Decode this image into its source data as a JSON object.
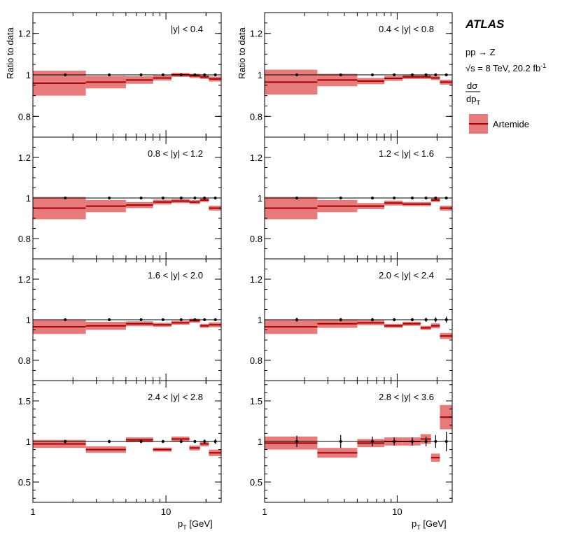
{
  "chart_data": {
    "type": "ratio",
    "experiment": "ATLAS",
    "process": "pp → Z",
    "energy_label": "√s = 8 TeV, 20.2 fb",
    "lumi_exponent": "-1",
    "observable_num": "dσ",
    "observable_den_base": "dp",
    "observable_den_sub": "T",
    "ylabel": "Ratio to data",
    "xlabel_base": "p",
    "xlabel_sub": "T",
    "xlabel_unit": "[GeV]",
    "legend": [
      {
        "name": "Artemide",
        "line_color": "#a00000",
        "band_color": "#e77b7b"
      }
    ],
    "x_range": [
      1,
      26
    ],
    "x_tick_labels": [
      {
        "value": 1,
        "label": "1"
      },
      {
        "value": 10,
        "label": "10"
      }
    ],
    "bins": [
      1,
      2.5,
      5,
      8,
      11,
      15,
      18,
      21,
      26
    ],
    "data_x": [
      1.75,
      3.75,
      6.5,
      9.5,
      13,
      16.5,
      19.5,
      23.5
    ],
    "panels": [
      {
        "label": "|y| < 0.4",
        "ylim": [
          0.7,
          1.3
        ],
        "yticks": [
          0.8,
          1,
          1.2
        ],
        "ytick_labels": [
          "0.8",
          "1",
          "1.2"
        ],
        "pred": [
          0.96,
          0.965,
          0.975,
          0.985,
          1.0,
          0.995,
          0.99,
          0.98
        ],
        "unc": [
          0.06,
          0.03,
          0.018,
          0.012,
          0.01,
          0.01,
          0.01,
          0.012
        ],
        "data_err": [
          0.004,
          0.003,
          0.003,
          0.003,
          0.003,
          0.003,
          0.003,
          0.003
        ]
      },
      {
        "label": "0.4 < |y| < 0.8",
        "ylim": [
          0.7,
          1.3
        ],
        "yticks": [
          0.8,
          1,
          1.2
        ],
        "ytick_labels": [
          "0.8",
          "1",
          "1.2"
        ],
        "pred": [
          0.965,
          0.975,
          0.97,
          0.983,
          0.99,
          0.99,
          0.985,
          0.965
        ],
        "unc": [
          0.06,
          0.03,
          0.015,
          0.012,
          0.01,
          0.01,
          0.01,
          0.012
        ],
        "data_err": [
          0.004,
          0.003,
          0.003,
          0.003,
          0.003,
          0.003,
          0.003,
          0.003
        ]
      },
      {
        "label": "0.8 < |y| < 1.2",
        "ylim": [
          0.7,
          1.3
        ],
        "yticks": [
          0.8,
          1,
          1.2
        ],
        "ytick_labels": [
          "0.8",
          "1",
          "1.2"
        ],
        "pred": [
          0.95,
          0.96,
          0.965,
          0.98,
          0.985,
          0.98,
          0.99,
          0.95
        ],
        "unc": [
          0.055,
          0.03,
          0.015,
          0.012,
          0.01,
          0.01,
          0.01,
          0.012
        ],
        "data_err": [
          0.004,
          0.003,
          0.003,
          0.003,
          0.003,
          0.003,
          0.003,
          0.003
        ]
      },
      {
        "label": "1.2 < |y| < 1.6",
        "ylim": [
          0.7,
          1.3
        ],
        "yticks": [
          0.8,
          1,
          1.2
        ],
        "ytick_labels": [
          "0.8",
          "1",
          "1.2"
        ],
        "pred": [
          0.95,
          0.96,
          0.96,
          0.975,
          0.97,
          0.97,
          0.99,
          0.95
        ],
        "unc": [
          0.055,
          0.03,
          0.015,
          0.012,
          0.01,
          0.01,
          0.01,
          0.012
        ],
        "data_err": [
          0.004,
          0.003,
          0.003,
          0.003,
          0.003,
          0.003,
          0.003,
          0.003
        ]
      },
      {
        "label": "1.6 < |y| < 2.0",
        "ylim": [
          0.7,
          1.3
        ],
        "yticks": [
          0.8,
          1,
          1.2
        ],
        "ytick_labels": [
          "0.8",
          "1",
          "1.2"
        ],
        "pred": [
          0.965,
          0.97,
          0.98,
          0.975,
          0.985,
          0.995,
          0.97,
          0.975
        ],
        "unc": [
          0.035,
          0.02,
          0.012,
          0.01,
          0.01,
          0.01,
          0.01,
          0.012
        ],
        "data_err": [
          0.004,
          0.003,
          0.003,
          0.003,
          0.003,
          0.003,
          0.003,
          0.003
        ]
      },
      {
        "label": "2.0 < |y| < 2.4",
        "ylim": [
          0.7,
          1.3
        ],
        "yticks": [
          0.8,
          1,
          1.2
        ],
        "ytick_labels": [
          "0.8",
          "1",
          "1.2"
        ],
        "pred": [
          0.965,
          0.98,
          0.985,
          0.97,
          0.98,
          0.96,
          0.97,
          0.92
        ],
        "unc": [
          0.035,
          0.02,
          0.012,
          0.01,
          0.01,
          0.01,
          0.012,
          0.015
        ],
        "data_err": [
          0.01,
          0.008,
          0.008,
          0.008,
          0.008,
          0.01,
          0.012,
          0.015
        ]
      },
      {
        "label": "2.4 < |y| < 2.8",
        "ylim": [
          0.25,
          1.75
        ],
        "yticks": [
          0.5,
          1,
          1.5
        ],
        "ytick_labels": [
          "0.5",
          "1",
          "1.5"
        ],
        "pred": [
          0.97,
          0.9,
          1.02,
          0.9,
          1.03,
          0.92,
          0.97,
          0.86
        ],
        "unc": [
          0.05,
          0.04,
          0.03,
          0.025,
          0.03,
          0.03,
          0.03,
          0.04
        ],
        "data_err": [
          0.02,
          0.02,
          0.02,
          0.02,
          0.02,
          0.02,
          0.025,
          0.03
        ]
      },
      {
        "label": "2.8 < |y| < 3.6",
        "ylim": [
          0.25,
          1.75
        ],
        "yticks": [
          0.5,
          1,
          1.5
        ],
        "ytick_labels": [
          "0.5",
          "1",
          "1.5"
        ],
        "pred": [
          0.98,
          0.86,
          0.98,
          1.0,
          1.0,
          1.03,
          0.8,
          1.3
        ],
        "unc": [
          0.08,
          0.06,
          0.05,
          0.05,
          0.05,
          0.06,
          0.05,
          0.15
        ],
        "data_err": [
          0.07,
          0.08,
          0.06,
          0.05,
          0.05,
          0.06,
          0.08,
          0.12
        ]
      }
    ]
  }
}
